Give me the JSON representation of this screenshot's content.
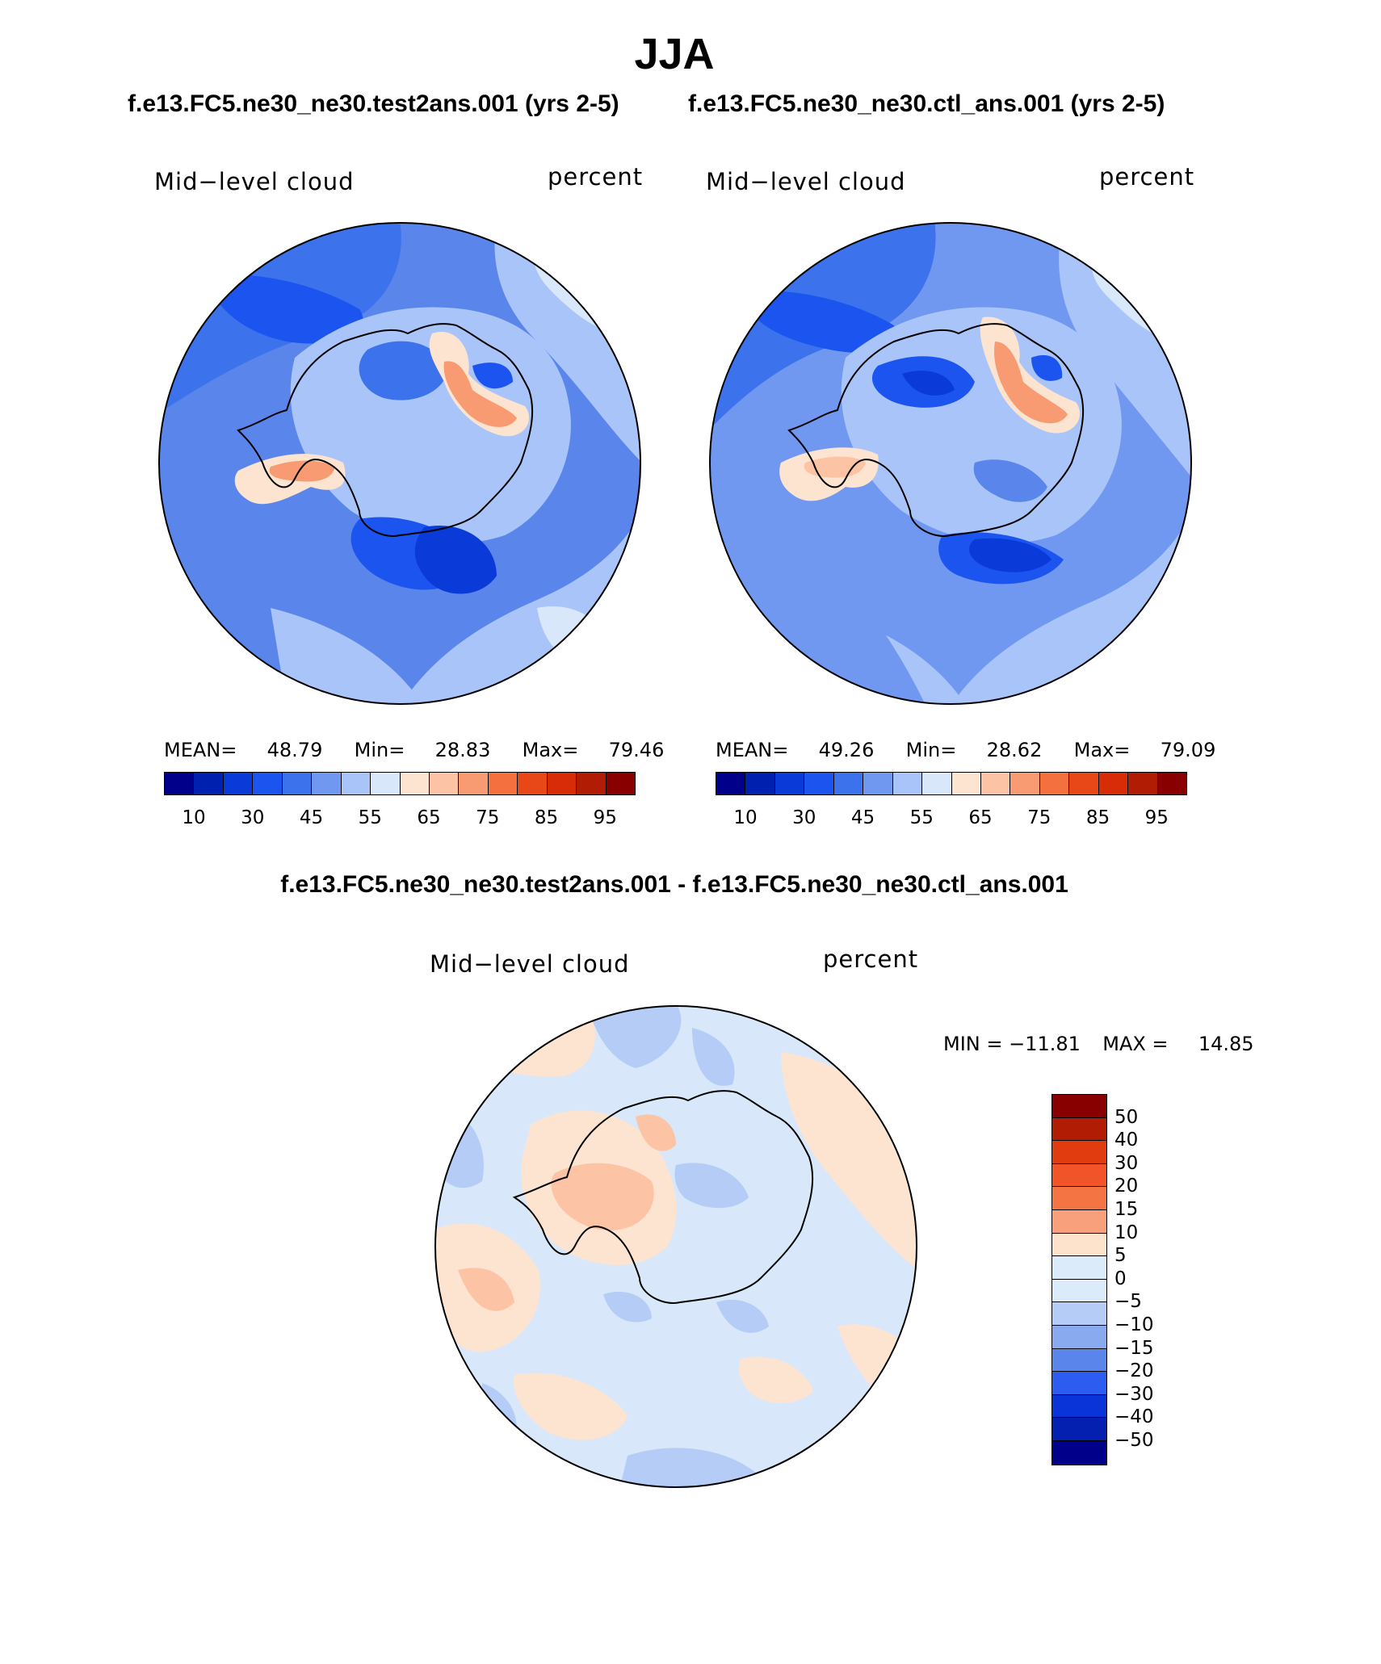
{
  "figure": {
    "title": "JJA",
    "left_run_title": "f.e13.FC5.ne30_ne30.test2ans.001 (yrs 2-5)",
    "right_run_title": "f.e13.FC5.ne30_ne30.ctl_ans.001 (yrs 2-5)",
    "diff_title": "f.e13.FC5.ne30_ne30.test2ans.001 - f.e13.FC5.ne30_ne30.ctl_ans.001"
  },
  "panels": [
    {
      "variable": "Mid−level cloud",
      "units": "percent",
      "stats": {
        "mean_label": "MEAN=",
        "mean": "48.79",
        "min_label": "Min=",
        "min": "28.83",
        "max_label": "Max=",
        "max": "79.46"
      }
    },
    {
      "variable": "Mid−level cloud",
      "units": "percent",
      "stats": {
        "mean_label": "MEAN=",
        "mean": "49.26",
        "min_label": "Min=",
        "min": "28.62",
        "max_label": "Max=",
        "max": "79.09"
      }
    },
    {
      "variable": "Mid−level cloud",
      "units": "percent",
      "stats": {
        "min_label": "MIN =",
        "min": "−11.81",
        "max_label": "MAX =",
        "max": "14.85"
      }
    }
  ],
  "colorbars": {
    "absolute": {
      "colors": [
        "#00008b",
        "#0020b0",
        "#0a3ad8",
        "#1c54f0",
        "#3c72ec",
        "#7098f0",
        "#a8c4f8",
        "#d8e8fa",
        "#fde4d0",
        "#fcc4a4",
        "#f89a72",
        "#f4703e",
        "#e84818",
        "#d82c08",
        "#b01c04",
        "#880000"
      ],
      "tick_labels": [
        "10",
        "30",
        "45",
        "55",
        "65",
        "75",
        "85",
        "95"
      ]
    },
    "difference": {
      "colors": [
        "#880000",
        "#b01c04",
        "#e03c10",
        "#f05428",
        "#f47444",
        "#f8a07c",
        "#fde2cc",
        "#dcebfa",
        "#b4ccf6",
        "#8aaaf0",
        "#5a86ec",
        "#2c5cf0",
        "#0a34d8",
        "#0420b0",
        "#00008b"
      ],
      "tick_labels": [
        "50",
        "40",
        "30",
        "20",
        "15",
        "10",
        "5",
        "0",
        "−5",
        "−10",
        "−15",
        "−20",
        "−30",
        "−40",
        "−50"
      ]
    }
  },
  "palette": {
    "deep_blue": "#1c54f0",
    "mid_blue": "#5a86ec",
    "light_blue": "#a8c4f8",
    "pale_blue": "#d8e8fa",
    "pale_orange": "#fde4d0",
    "orange": "#f89a72",
    "red_orange": "#f4703e"
  }
}
